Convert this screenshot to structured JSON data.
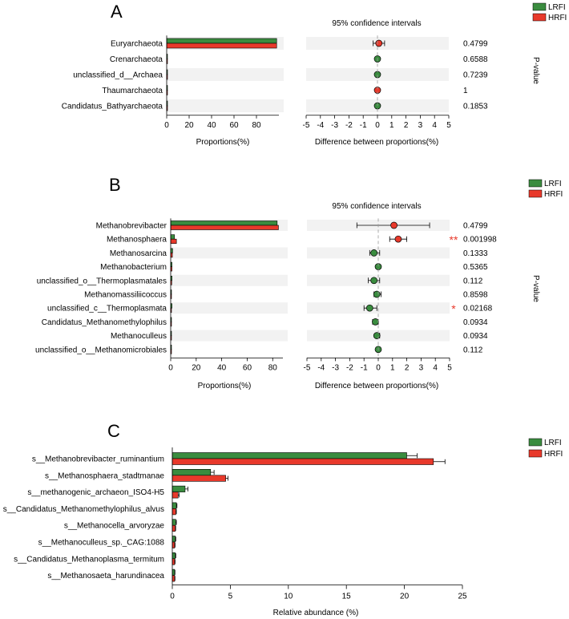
{
  "colors": {
    "lrfi": "#3a8c3f",
    "hrfi": "#e8392b",
    "band": "#f2f2f2",
    "axis": "#000000",
    "dash": "#999999"
  },
  "legend": {
    "lrfi": "LRFI",
    "hrfi": "HRFI"
  },
  "chart_data": [
    {
      "type": "bar",
      "panel": "A",
      "subtype": "extended-error-bar",
      "categories": [
        "Euryarchaeota",
        "Crenarchaeota",
        "unclassified_d__Archaea",
        "Thaumarchaeota",
        "Candidatus_Bathyarchaeota"
      ],
      "series": [
        {
          "name": "LRFI",
          "values": [
            98.0,
            0.6,
            0.6,
            0.3,
            0.3
          ]
        },
        {
          "name": "HRFI",
          "values": [
            98.0,
            0.6,
            0.6,
            0.3,
            0.3
          ]
        }
      ],
      "difference": [
        0.1,
        0.0,
        0.0,
        0.0,
        0.0
      ],
      "ci_low": [
        -0.3,
        -0.1,
        -0.1,
        -0.1,
        -0.1
      ],
      "ci_high": [
        0.5,
        0.1,
        0.1,
        0.1,
        0.1
      ],
      "marker_group": [
        "HRFI",
        "LRFI",
        "LRFI",
        "HRFI",
        "LRFI"
      ],
      "p_values": [
        "0.4799",
        "0.6588",
        "0.7239",
        "1",
        "0.1853"
      ],
      "stars": [
        "",
        "",
        "",
        "",
        ""
      ],
      "xlabel": "Proportions(%)",
      "xticks": [
        "0",
        "20",
        "40",
        "60",
        "80"
      ],
      "xlim": [
        0,
        100
      ],
      "ci_title": "95% confidence intervals",
      "ci_xlabel": "Difference between proportions(%)",
      "ci_xticks": [
        "-5",
        "-4",
        "-3",
        "-2",
        "-1",
        "0",
        "1",
        "2",
        "3",
        "4",
        "5"
      ],
      "ci_xlim": [
        -5,
        5
      ],
      "p_label": "P-value"
    },
    {
      "type": "bar",
      "panel": "B",
      "subtype": "extended-error-bar",
      "categories": [
        "Methanobrevibacter",
        "Methanosphaera",
        "Methanosarcina",
        "Methanobacterium",
        "unclassified_o__Thermoplasmatales",
        "Methanomassiliicoccus",
        "unclassified_c__Thermoplasmata",
        "Candidatus_Methanomethylophilus",
        "Methanoculleus",
        "unclassified_o__Methanomicrobiales"
      ],
      "series": [
        {
          "name": "LRFI",
          "values": [
            83.5,
            3.0,
            1.5,
            1.0,
            1.0,
            0.6,
            1.0,
            0.6,
            0.5,
            0.3
          ]
        },
        {
          "name": "HRFI",
          "values": [
            84.5,
            4.5,
            1.3,
            1.0,
            0.8,
            0.5,
            0.6,
            0.5,
            0.4,
            0.3
          ]
        }
      ],
      "difference": [
        1.1,
        1.4,
        -0.3,
        0.0,
        -0.3,
        -0.1,
        -0.6,
        -0.2,
        -0.1,
        0.0
      ],
      "ci_low": [
        -1.5,
        0.8,
        -0.6,
        -0.1,
        -0.7,
        -0.3,
        -1.0,
        -0.4,
        -0.2,
        -0.1
      ],
      "ci_high": [
        3.6,
        2.0,
        0.1,
        0.1,
        0.1,
        0.2,
        -0.1,
        0.0,
        0.1,
        0.1
      ],
      "marker_group": [
        "HRFI",
        "HRFI",
        "LRFI",
        "LRFI",
        "LRFI",
        "LRFI",
        "LRFI",
        "LRFI",
        "LRFI",
        "LRFI"
      ],
      "p_values": [
        "0.4799",
        "0.001998",
        "0.1333",
        "0.5365",
        "0.112",
        "0.8598",
        "0.02168",
        "0.0934",
        "0.0934",
        "0.112"
      ],
      "stars": [
        "",
        "**",
        "",
        "",
        "",
        "",
        "*",
        "",
        "",
        ""
      ],
      "xlabel": "Proportions(%)",
      "xticks": [
        "0",
        "20",
        "40",
        "60",
        "80"
      ],
      "xlim": [
        0,
        88
      ],
      "ci_title": "95% confidence intervals",
      "ci_xlabel": "Difference between proportions(%)",
      "ci_xticks": [
        "-5",
        "-4",
        "-3",
        "-2",
        "-1",
        "0",
        "1",
        "2",
        "3",
        "4",
        "5"
      ],
      "ci_xlim": [
        -5,
        5
      ],
      "p_label": "P-value"
    },
    {
      "type": "bar",
      "panel": "C",
      "categories": [
        "s__Methanobrevibacter_ruminantium",
        "s__Methanosphaera_stadtmanae",
        "s__methanogenic_archaeon_ISO4-H5",
        "s__Candidatus_Methanomethylophilus_alvus",
        "s__Methanocella_arvoryzae",
        "s__Methanoculleus_sp._CAG:1088",
        "s__Candidatus_Methanoplasma_termitum",
        "s__Methanosaeta_harundinacea"
      ],
      "series": [
        {
          "name": "LRFI",
          "values": [
            20.2,
            3.3,
            1.1,
            0.35,
            0.3,
            0.25,
            0.25,
            0.2
          ],
          "errors": [
            0.9,
            0.3,
            0.25,
            0.05,
            0.05,
            0.05,
            0.05,
            0.03
          ]
        },
        {
          "name": "HRFI",
          "values": [
            22.5,
            4.6,
            0.5,
            0.3,
            0.25,
            0.2,
            0.2,
            0.2
          ],
          "errors": [
            1.0,
            0.2,
            0.1,
            0.05,
            0.04,
            0.04,
            0.04,
            0.03
          ]
        }
      ],
      "xlabel": "Relative abundance (%)",
      "xticks": [
        "0",
        "5",
        "10",
        "15",
        "20",
        "25"
      ],
      "xlim": [
        0,
        25
      ]
    }
  ]
}
